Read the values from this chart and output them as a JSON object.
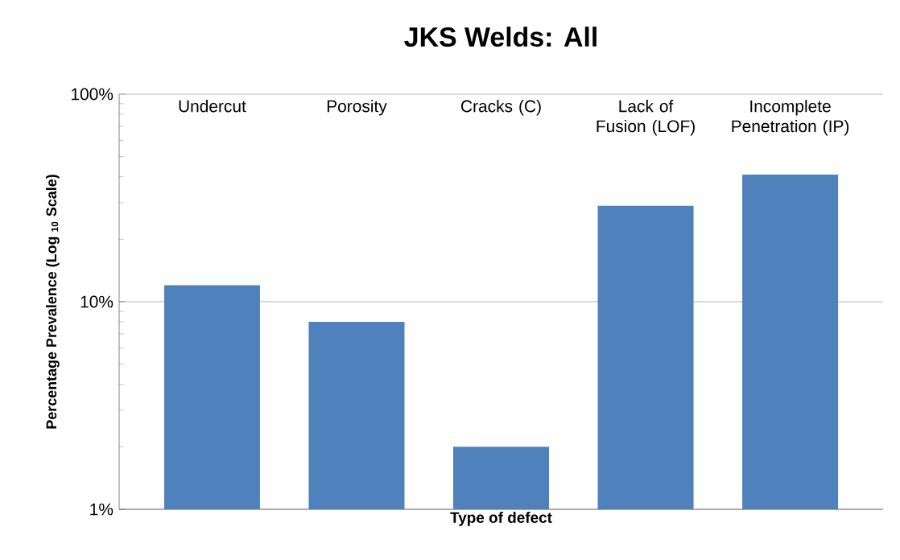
{
  "chart_data": {
    "type": "bar",
    "title": "JKS Welds: All",
    "xlabel": "Type of defect",
    "ylabel": "Percentage Prevalence (Log $_{10}$ Scale)",
    "categories": [
      "Undercut",
      "Porosity",
      "Cracks (C)",
      "Lack of Fusion (LOF)",
      "Incomplete Penetration (IP)"
    ],
    "values": [
      12,
      8,
      2,
      29,
      41
    ],
    "color": "#4f81bd",
    "log": "y",
    "ylim": [
      1,
      100
    ],
    "yticks": [
      {
        "value": 1,
        "label": "1%"
      },
      {
        "value": 10,
        "label": "10%"
      },
      {
        "value": 100,
        "label": "100%"
      }
    ],
    "grid": "y"
  }
}
